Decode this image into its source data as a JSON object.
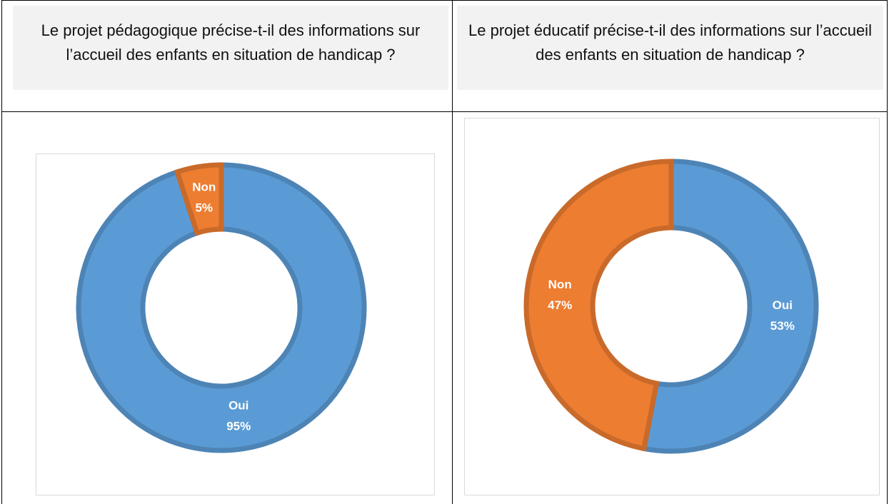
{
  "table": {
    "headers": [
      "Le projet pédagogique précise-t-il des informations sur l’accueil des enfants en situation de handicap ?",
      "Le projet éducatif précise-t-il des informations sur l’accueil des enfants en situation de handicap ?"
    ]
  },
  "chart_data": [
    {
      "type": "donut",
      "categories": [
        "Oui",
        "Non"
      ],
      "values": [
        95,
        5
      ],
      "value_labels": [
        "95%",
        "5%"
      ],
      "colors": [
        "#5b9bd5",
        "#ed7d31"
      ]
    },
    {
      "type": "donut",
      "categories": [
        "Oui",
        "Non"
      ],
      "values": [
        53,
        47
      ],
      "value_labels": [
        "53%",
        "47%"
      ],
      "colors": [
        "#5b9bd5",
        "#ed7d31"
      ]
    }
  ]
}
